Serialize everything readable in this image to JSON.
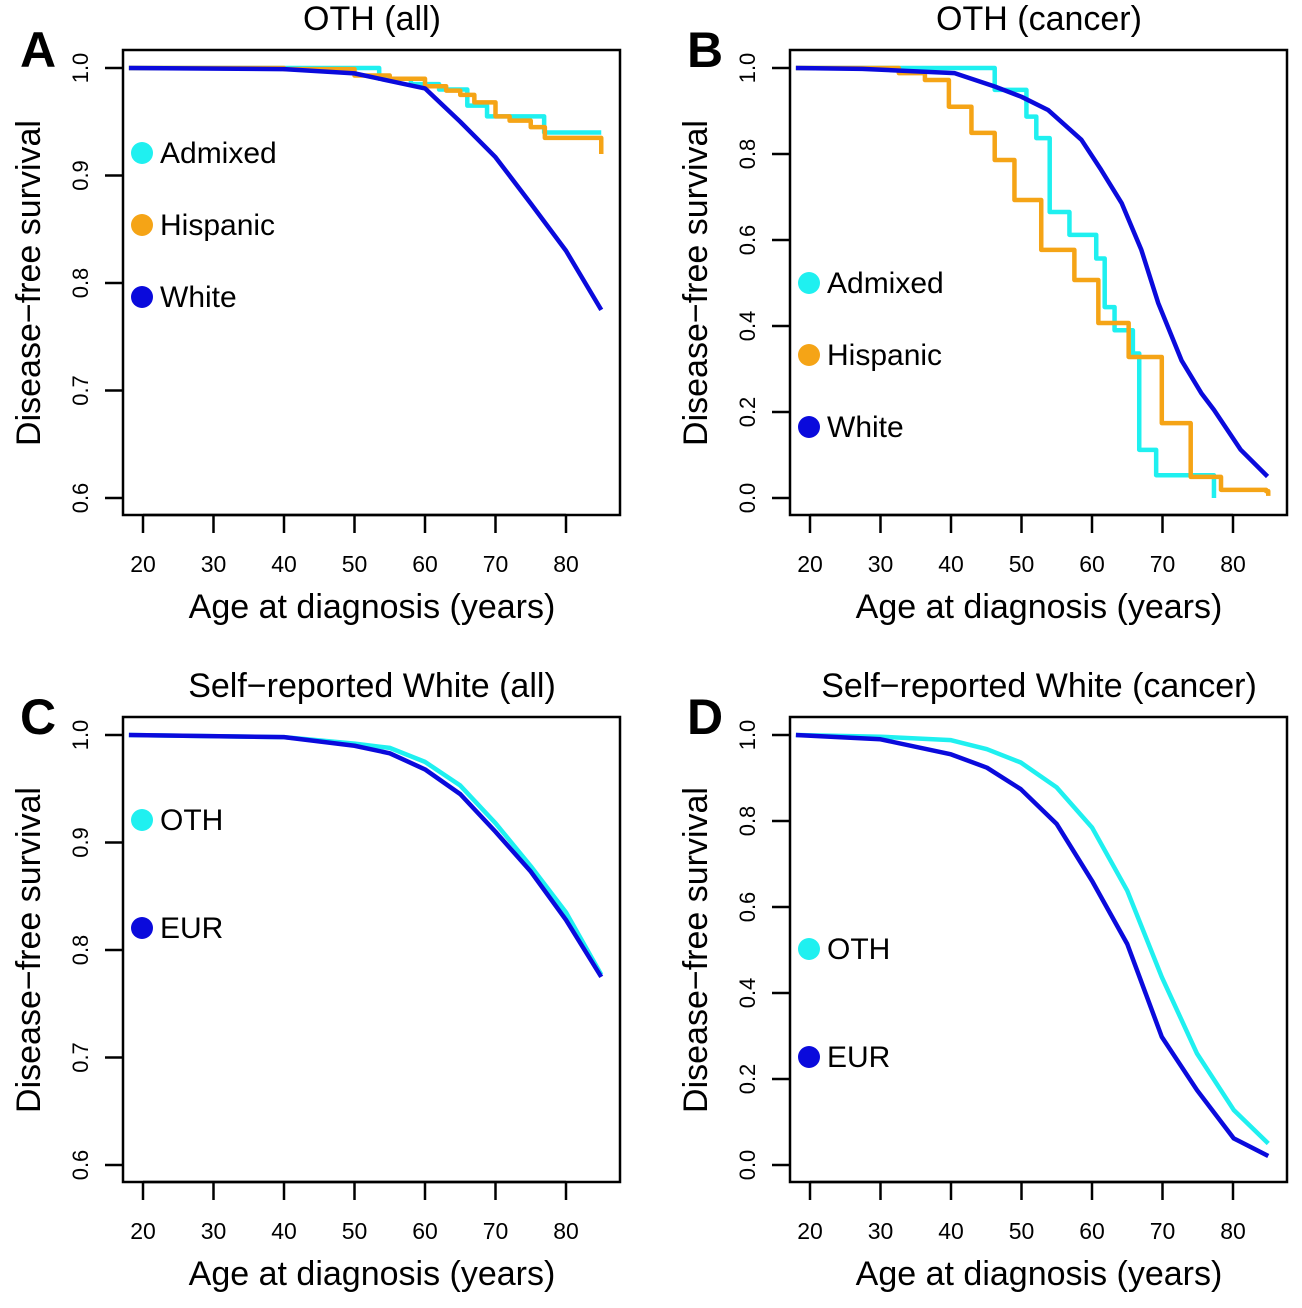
{
  "chart_data": [
    {
      "type": "line",
      "panel_letter": "A",
      "title": "OTH (all)",
      "xlabel": "Age at diagnosis (years)",
      "ylabel": "Disease−free survival",
      "xlim": [
        17.2,
        87.5
      ],
      "ylim": [
        0.6,
        1.0
      ],
      "xticks": [
        "20",
        "30",
        "40",
        "50",
        "60",
        "70",
        "80"
      ],
      "yticks": [
        "0.6",
        "0.7",
        "0.8",
        "0.9",
        "1.0"
      ],
      "legend_placement": "left",
      "series": [
        {
          "name": "Admixed",
          "color": "#1ff0f0",
          "step": true,
          "x": [
            18,
            53.5,
            58,
            62,
            66,
            68.8,
            76.9,
            85
          ],
          "y": [
            1.0,
            0.99,
            0.985,
            0.98,
            0.965,
            0.955,
            0.94,
            0.94
          ]
        },
        {
          "name": "Hispanic",
          "color": "#f5a416",
          "step": true,
          "x": [
            18,
            40,
            50,
            55,
            60,
            63,
            65,
            67,
            70,
            72,
            75,
            77,
            85,
            85
          ],
          "y": [
            1.0,
            0.999,
            0.993,
            0.99,
            0.983,
            0.979,
            0.975,
            0.968,
            0.955,
            0.951,
            0.945,
            0.935,
            0.935,
            0.92
          ]
        },
        {
          "name": "White",
          "color": "#0a0adc",
          "step": false,
          "x": [
            18,
            40,
            50,
            55,
            60,
            65,
            70,
            75,
            80,
            85
          ],
          "y": [
            1.0,
            0.999,
            0.995,
            0.988,
            0.981,
            0.95,
            0.917,
            0.874,
            0.83,
            0.775
          ]
        }
      ]
    },
    {
      "type": "line",
      "panel_letter": "B",
      "title": "OTH (cancer)",
      "xlabel": "Age at diagnosis (years)",
      "ylabel": "Disease−free survival",
      "xlim": [
        17.2,
        87.5
      ],
      "ylim": [
        0.0,
        1.0
      ],
      "xticks": [
        "20",
        "30",
        "40",
        "50",
        "60",
        "70",
        "80"
      ],
      "yticks": [
        "0.0",
        "0.2",
        "0.4",
        "0.6",
        "0.8",
        "1.0"
      ],
      "legend_placement": "left",
      "series": [
        {
          "name": "Admixed",
          "color": "#1ff0f0",
          "step": true,
          "x": [
            18,
            46.2,
            50.7,
            52.1,
            54,
            56.8,
            60.6,
            61.8,
            63.2,
            65.8,
            66.7,
            69.1,
            77.3
          ],
          "y": [
            1.0,
            0.949,
            0.887,
            0.837,
            0.665,
            0.612,
            0.557,
            0.444,
            0.39,
            0.336,
            0.112,
            0.053,
            0.0
          ]
        },
        {
          "name": "Hispanic",
          "color": "#f5a416",
          "step": true,
          "x": [
            18,
            32.6,
            36.3,
            39.7,
            42.9,
            46.2,
            49,
            52.8,
            57.5,
            60.9,
            65.2,
            69.9,
            74,
            78.3,
            84.7,
            85
          ],
          "y": [
            1.0,
            0.988,
            0.972,
            0.91,
            0.849,
            0.786,
            0.693,
            0.577,
            0.507,
            0.407,
            0.328,
            0.174,
            0.049,
            0.019,
            0.016,
            0.005
          ]
        },
        {
          "name": "White",
          "color": "#0a0adc",
          "step": false,
          "x": [
            18,
            27.4,
            40.5,
            46.2,
            50,
            53.8,
            58.5,
            61.3,
            64.2,
            67,
            69.4,
            72.7,
            75.5,
            77.3,
            81.1,
            84.9
          ],
          "y": [
            1.0,
            0.998,
            0.988,
            0.957,
            0.933,
            0.902,
            0.833,
            0.763,
            0.686,
            0.577,
            0.453,
            0.32,
            0.244,
            0.205,
            0.112,
            0.05
          ]
        }
      ]
    },
    {
      "type": "line",
      "panel_letter": "C",
      "title": "Self−reported White (all)",
      "xlabel": "Age at diagnosis (years)",
      "ylabel": "Disease−free survival",
      "xlim": [
        17.2,
        87.5
      ],
      "ylim": [
        0.6,
        1.0
      ],
      "xticks": [
        "20",
        "30",
        "40",
        "50",
        "60",
        "70",
        "80"
      ],
      "yticks": [
        "0.6",
        "0.7",
        "0.8",
        "0.9",
        "1.0"
      ],
      "legend_placement": "left",
      "series": [
        {
          "name": "OTH",
          "color": "#1ff0f0",
          "step": false,
          "x": [
            18,
            40,
            50,
            55,
            60,
            65,
            70,
            75,
            80,
            85
          ],
          "y": [
            1.0,
            0.998,
            0.992,
            0.988,
            0.975,
            0.953,
            0.918,
            0.878,
            0.835,
            0.777
          ]
        },
        {
          "name": "EUR",
          "color": "#0a0adc",
          "step": false,
          "x": [
            18,
            40,
            50,
            55,
            60,
            65,
            70,
            75,
            80,
            85
          ],
          "y": [
            1.0,
            0.998,
            0.99,
            0.983,
            0.968,
            0.945,
            0.91,
            0.873,
            0.828,
            0.775
          ]
        }
      ]
    },
    {
      "type": "line",
      "panel_letter": "D",
      "title": "Self−reported White (cancer)",
      "xlabel": "Age at diagnosis (years)",
      "ylabel": "Disease−free survival",
      "xlim": [
        17.2,
        87.5
      ],
      "ylim": [
        0.0,
        1.0
      ],
      "xticks": [
        "20",
        "30",
        "40",
        "50",
        "60",
        "70",
        "80"
      ],
      "yticks": [
        "0.0",
        "0.2",
        "0.4",
        "0.6",
        "0.8",
        "1.0"
      ],
      "legend_placement": "left",
      "series": [
        {
          "name": "OTH",
          "color": "#1ff0f0",
          "step": false,
          "x": [
            18,
            30,
            40,
            45.1,
            49.9,
            55,
            60,
            65,
            69.9,
            74.9,
            80.1,
            85
          ],
          "y": [
            1.0,
            0.996,
            0.988,
            0.967,
            0.936,
            0.878,
            0.785,
            0.638,
            0.437,
            0.259,
            0.128,
            0.05
          ]
        },
        {
          "name": "EUR",
          "color": "#0a0adc",
          "step": false,
          "x": [
            18,
            30,
            40,
            45.1,
            49.9,
            55,
            60,
            65,
            69.9,
            74.9,
            80.1,
            85
          ],
          "y": [
            1.0,
            0.99,
            0.955,
            0.924,
            0.874,
            0.793,
            0.661,
            0.514,
            0.298,
            0.174,
            0.062,
            0.021
          ]
        }
      ]
    }
  ]
}
